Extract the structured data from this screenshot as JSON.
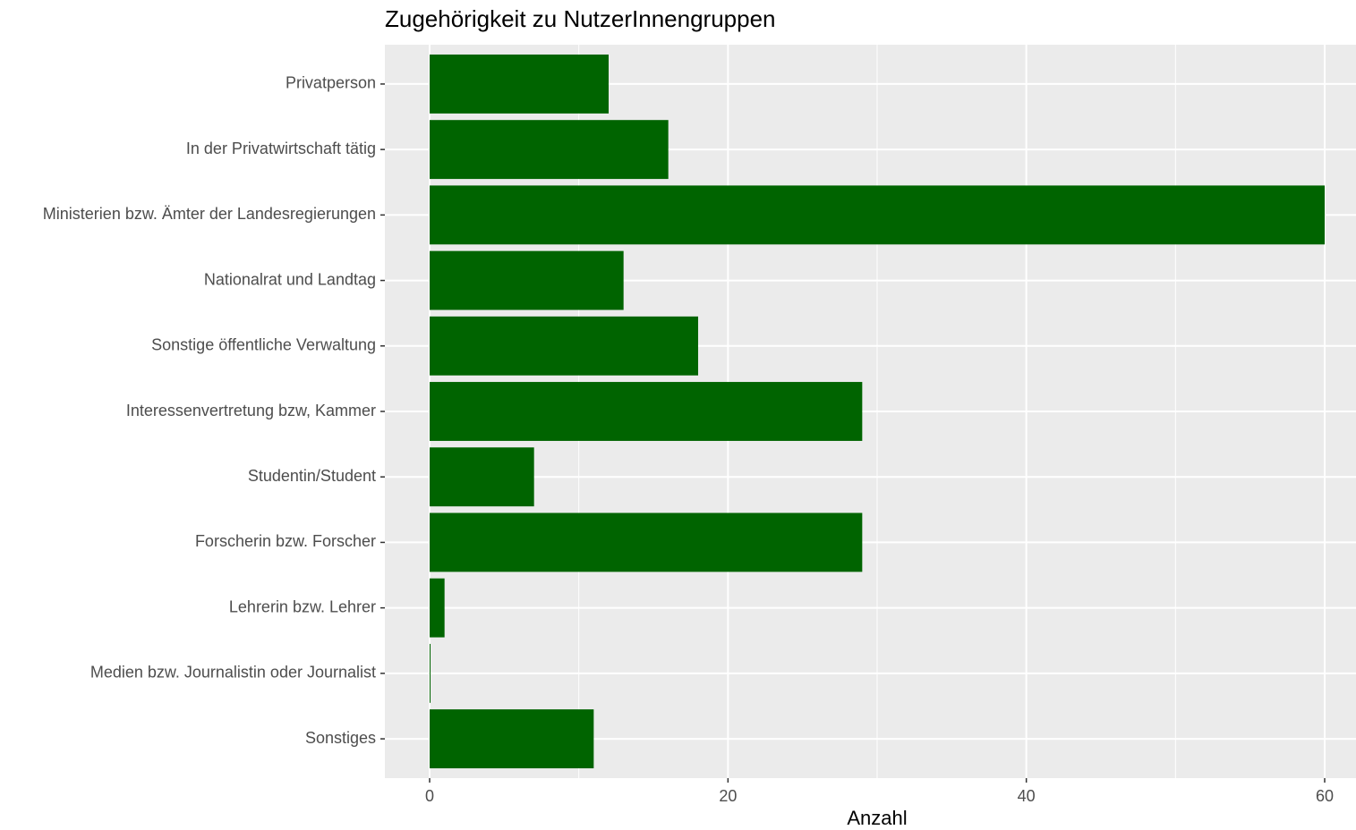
{
  "chart_data": {
    "type": "bar",
    "orientation": "horizontal",
    "title": "Zugehörigkeit zu NutzerInnengruppen",
    "x_label": "Anzahl",
    "categories": [
      "Privatperson",
      "In der Privatwirtschaft tätig",
      "Ministerien bzw. Ämter der Landesregierungen",
      "Nationalrat und Landtag",
      "Sonstige öffentliche Verwaltung",
      "Interessenvertretung bzw, Kammer",
      "Studentin/Student",
      "Forscherin bzw. Forscher",
      "Lehrerin bzw. Lehrer",
      "Medien bzw. Journalistin oder Journalist",
      "Sonstiges"
    ],
    "values": [
      12,
      16,
      60,
      13,
      18,
      29,
      7,
      29,
      1,
      0,
      11
    ],
    "color": "#006400",
    "xlim": [
      -3,
      62.1
    ],
    "xticks": [
      0,
      20,
      40,
      60
    ],
    "grid": true,
    "minor_grid": true
  }
}
